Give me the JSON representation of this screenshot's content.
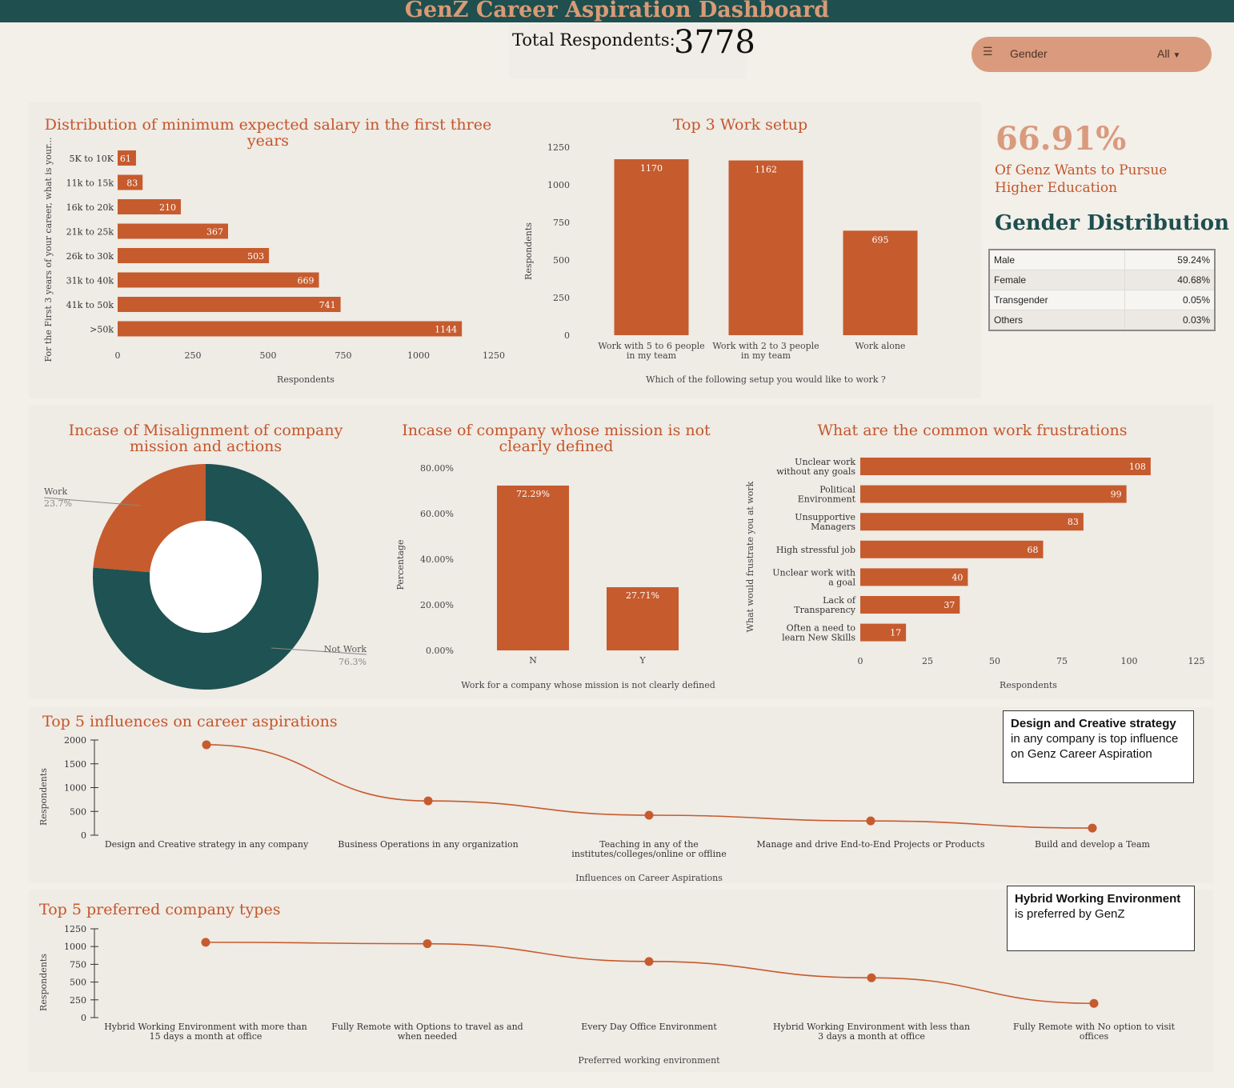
{
  "header": {
    "title": "GenZ Career Aspiration Dashboard",
    "total_label": "Total Respondents:",
    "total_value": "3778"
  },
  "filter": {
    "label": "Gender",
    "value": "All",
    "icon": "filter-icon"
  },
  "kpi": {
    "value": "66.91%",
    "text": "Of Genz Wants to Pursue Higher Education"
  },
  "gender_distribution": {
    "title": "Gender Distribution",
    "rows": [
      {
        "label": "Male",
        "value": "59.24%"
      },
      {
        "label": "Female",
        "value": "40.68%"
      },
      {
        "label": "Transgender",
        "value": "0.05%"
      },
      {
        "label": "Others",
        "value": "0.03%"
      }
    ]
  },
  "notes": {
    "influence_bold": "Design and Creative strategy",
    "influence_rest": " in any company is top influence on Genz Career Aspiration",
    "company_bold": "Hybrid Working Environment",
    "company_rest": " is preferred by GenZ"
  },
  "colors": {
    "accent": "#c65b2e",
    "teal": "#1f4f4f",
    "peach": "#d99a7d"
  },
  "chart_data": [
    {
      "id": "salary",
      "type": "bar",
      "orientation": "horizontal",
      "title": "Distribution of minimum expected salary in the first three years",
      "categories": [
        "5K to 10K",
        "11k to 15k",
        "16k to 20k",
        "21k to 25k",
        "26k to 30k",
        "31k to 40k",
        "41k to 50k",
        ">50k"
      ],
      "values": [
        61,
        83,
        210,
        367,
        503,
        669,
        741,
        1144
      ],
      "xlabel": "Respondents",
      "ylabel": "For the First 3 years of your career, what is your...",
      "xlim": [
        0,
        1250
      ],
      "ticks": [
        0,
        250,
        500,
        750,
        1000,
        1250
      ]
    },
    {
      "id": "setup",
      "type": "bar",
      "title": "Top 3 Work setup",
      "categories": [
        "Work with 5 to 6 people in my team",
        "Work with 2 to 3 people in my team",
        "Work alone"
      ],
      "values": [
        1170,
        1162,
        695
      ],
      "xlabel": "Which of the following setup you would like to work ?",
      "ylabel": "Respondents",
      "ylim": [
        0,
        1250
      ],
      "ticks": [
        0,
        250,
        500,
        750,
        1000,
        1250
      ]
    },
    {
      "id": "misalign",
      "type": "pie",
      "title": "Incase of Misalignment of company mission and actions",
      "slices": [
        {
          "label": "Work",
          "value": 23.7,
          "text": "23.7%",
          "color": "#c65b2e"
        },
        {
          "label": "Not Work",
          "value": 76.3,
          "text": "76.3%",
          "color": "#1f5252"
        }
      ]
    },
    {
      "id": "mission",
      "type": "bar",
      "title": "Incase of company whose mission is not clearly defined",
      "categories": [
        "N",
        "Y"
      ],
      "values": [
        72.29,
        27.71
      ],
      "labels": [
        "72.29%",
        "27.71%"
      ],
      "xlabel": "Work for a company whose mission is not clearly defined",
      "ylabel": "Percentage",
      "ylim": [
        0,
        80
      ],
      "ticks": [
        "0.00%",
        "20.00%",
        "40.00%",
        "60.00%",
        "80.00%"
      ]
    },
    {
      "id": "frustrations",
      "type": "bar",
      "orientation": "horizontal",
      "title": "What are the common work frustrations",
      "categories": [
        "Unclear work without any goals",
        "Political Environment",
        "Unsupportive Managers",
        "High stressful job",
        "Unclear work with a goal",
        "Lack of Transparency",
        "Often a need to learn New Skills"
      ],
      "values": [
        108,
        99,
        83,
        68,
        40,
        37,
        17
      ],
      "xlabel": "Respondents",
      "ylabel": "What would frustrate you at work",
      "xlim": [
        0,
        125
      ],
      "ticks": [
        0,
        25,
        50,
        75,
        100,
        125
      ]
    },
    {
      "id": "influences",
      "type": "line",
      "title": "Top 5 influences on career aspirations",
      "categories": [
        "Design and Creative strategy in any company",
        "Business Operations in any organization",
        "Teaching in any of the institutes/colleges/online or offline",
        "Manage and drive End-to-End Projects or Products",
        "Build and develop a Team"
      ],
      "values": [
        1900,
        720,
        420,
        300,
        150
      ],
      "xlabel": "Influences on Career Aspirations",
      "ylabel": "Respondents",
      "ylim": [
        0,
        2000
      ],
      "ticks": [
        0,
        500,
        1000,
        1500,
        2000
      ]
    },
    {
      "id": "companies",
      "type": "line",
      "title": "Top 5 preferred company types",
      "categories": [
        "Hybrid Working Environment with more than 15 days a month at office",
        "Fully Remote with Options to travel as and when needed",
        "Every Day Office Environment",
        "Hybrid Working Environment with less than 3 days a month at office",
        "Fully Remote with No option to visit offices"
      ],
      "values": [
        1060,
        1040,
        790,
        560,
        200
      ],
      "xlabel": "Preferred working environment",
      "ylabel": "Respondents",
      "ylim": [
        0,
        1250
      ],
      "ticks": [
        0,
        250,
        500,
        750,
        1000,
        1250
      ]
    }
  ]
}
